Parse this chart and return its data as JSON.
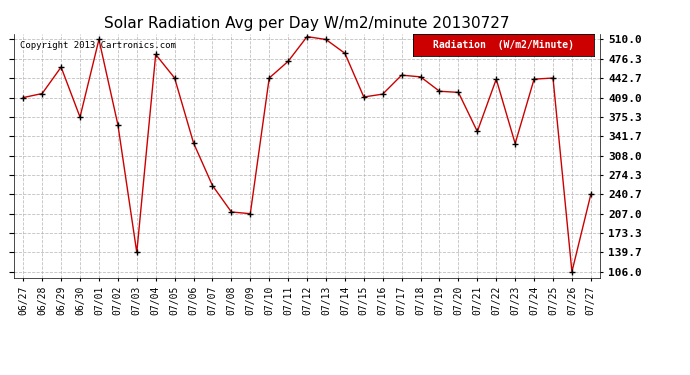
{
  "title": "Solar Radiation Avg per Day W/m2/minute 20130727",
  "copyright": "Copyright 2013 Cartronics.com",
  "legend_label": "Radiation  (W/m2/Minute)",
  "dates": [
    "06/27",
    "06/28",
    "06/29",
    "06/30",
    "07/01",
    "07/02",
    "07/03",
    "07/04",
    "07/05",
    "07/06",
    "07/07",
    "07/08",
    "07/09",
    "07/10",
    "07/11",
    "07/12",
    "07/13",
    "07/14",
    "07/15",
    "07/16",
    "07/17",
    "07/18",
    "07/19",
    "07/20",
    "07/21",
    "07/22",
    "07/23",
    "07/24",
    "07/25",
    "07/26",
    "07/27"
  ],
  "values": [
    409.0,
    416.0,
    462.0,
    375.0,
    510.0,
    362.0,
    139.7,
    484.0,
    443.0,
    330.0,
    256.0,
    210.0,
    207.0,
    443.0,
    472.0,
    515.0,
    510.0,
    486.0,
    410.0,
    415.0,
    448.0,
    445.0,
    420.0,
    418.0,
    350.0,
    441.0,
    329.0,
    441.0,
    443.0,
    106.0,
    240.7
  ],
  "yticks": [
    106.0,
    139.7,
    173.3,
    207.0,
    240.7,
    274.3,
    308.0,
    341.7,
    375.3,
    409.0,
    442.7,
    476.3,
    510.0
  ],
  "ymin": 96.0,
  "ymax": 520.0,
  "line_color": "#cc0000",
  "marker_color": "#000000",
  "bg_color": "#ffffff",
  "grid_color": "#b0b0b0",
  "title_fontsize": 11,
  "ytick_fontsize": 8,
  "xtick_fontsize": 7,
  "legend_bg": "#cc0000",
  "legend_text_color": "#ffffff",
  "legend_fontsize": 7
}
